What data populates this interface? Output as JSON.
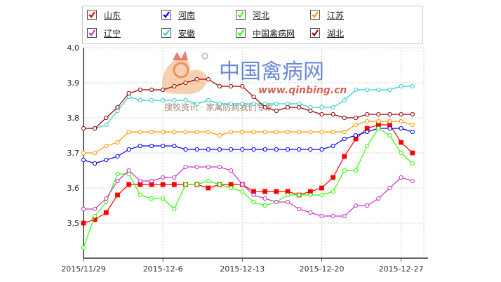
{
  "chart_data": {
    "type": "line",
    "title": "",
    "xlabel": "",
    "ylabel": "",
    "ylim": [
      3.4,
      4.0
    ],
    "yticks": [
      "4,0",
      "3,9",
      "3,8",
      "3,7",
      "3,6",
      "3,5"
    ],
    "x_start": "2015-11-29",
    "x_end": "2015-12-29",
    "xticks": [
      {
        "date": "2015-11-29",
        "label": "2015/11/29"
      },
      {
        "date": "2015-12-06",
        "label": "2015-12-6"
      },
      {
        "date": "2015-12-13",
        "label": "2015-12-13"
      },
      {
        "date": "2015-12-20",
        "label": "2015-12-20"
      },
      {
        "date": "2015-12-27",
        "label": "2015-12-27"
      }
    ],
    "grid": true,
    "legend_position": "top",
    "series": [
      {
        "name": "山东",
        "color": "#ff0000",
        "marker": "square-filled",
        "values": [
          3.5,
          3.51,
          3.53,
          3.58,
          3.61,
          3.61,
          3.61,
          3.61,
          3.61,
          3.61,
          3.61,
          3.6,
          3.61,
          3.61,
          3.61,
          3.59,
          3.59,
          3.59,
          3.59,
          3.58,
          3.59,
          3.6,
          3.63,
          3.69,
          3.74,
          3.77,
          3.78,
          3.78,
          3.73,
          3.7
        ]
      },
      {
        "name": "河南",
        "color": "#0000ff",
        "marker": "circle-open",
        "values": [
          3.68,
          3.67,
          3.68,
          3.69,
          3.71,
          3.72,
          3.72,
          3.72,
          3.72,
          3.71,
          3.71,
          3.71,
          3.71,
          3.71,
          3.71,
          3.71,
          3.71,
          3.71,
          3.71,
          3.71,
          3.71,
          3.71,
          3.72,
          3.74,
          3.75,
          3.76,
          3.77,
          3.77,
          3.77,
          3.76
        ]
      },
      {
        "name": "河北",
        "color": "#33ff00",
        "marker": "circle-open",
        "values": [
          3.43,
          3.52,
          3.56,
          3.64,
          3.64,
          3.58,
          3.57,
          3.57,
          3.54,
          3.61,
          3.61,
          3.62,
          3.61,
          3.6,
          3.59,
          3.56,
          3.55,
          3.56,
          3.58,
          3.58,
          3.58,
          3.58,
          3.59,
          3.65,
          3.65,
          3.72,
          3.77,
          3.75,
          3.7,
          3.67
        ]
      },
      {
        "name": "江苏",
        "color": "#ff9900",
        "marker": "circle-open",
        "values": [
          3.7,
          3.7,
          3.72,
          3.73,
          3.76,
          3.76,
          3.76,
          3.76,
          3.76,
          3.76,
          3.76,
          3.76,
          3.75,
          3.76,
          3.76,
          3.76,
          3.76,
          3.76,
          3.76,
          3.76,
          3.76,
          3.76,
          3.76,
          3.76,
          3.78,
          3.79,
          3.79,
          3.79,
          3.79,
          3.78
        ]
      },
      {
        "name": "辽宁",
        "color": "#cc33cc",
        "marker": "circle-open",
        "values": [
          3.54,
          3.54,
          3.57,
          3.62,
          3.65,
          3.62,
          3.62,
          3.63,
          3.63,
          3.66,
          3.66,
          3.66,
          3.66,
          3.65,
          3.61,
          3.58,
          3.57,
          3.56,
          3.56,
          3.54,
          3.53,
          3.52,
          3.52,
          3.52,
          3.55,
          3.55,
          3.57,
          3.6,
          3.63,
          3.62
        ]
      },
      {
        "name": "安徽",
        "color": "#33cccc",
        "marker": "circle-open",
        "values": [
          3.77,
          3.77,
          3.78,
          3.82,
          3.86,
          3.85,
          3.85,
          3.85,
          3.85,
          3.85,
          3.84,
          3.85,
          3.84,
          3.84,
          3.84,
          3.84,
          3.84,
          3.84,
          3.84,
          3.84,
          3.83,
          3.83,
          3.83,
          3.85,
          3.88,
          3.88,
          3.88,
          3.88,
          3.89,
          3.89
        ]
      },
      {
        "name": "中国禽病网",
        "color": "#33ff00",
        "marker": "none",
        "values": []
      },
      {
        "name": "湖北",
        "color": "#990000",
        "marker": "circle-open",
        "values": [
          3.77,
          3.77,
          3.8,
          3.83,
          3.87,
          3.88,
          3.88,
          3.88,
          3.89,
          3.9,
          3.91,
          3.91,
          3.89,
          3.89,
          3.89,
          3.86,
          3.83,
          3.82,
          3.83,
          3.83,
          3.82,
          3.81,
          3.81,
          3.8,
          3.8,
          3.81,
          3.81,
          3.81,
          3.81,
          3.81
        ]
      }
    ]
  },
  "watermark": {
    "site_cn": "中国禽病网",
    "site_url": "www.qinbing.cn",
    "slogan": "搜牧资讯 · 家禽防病我们专家"
  }
}
